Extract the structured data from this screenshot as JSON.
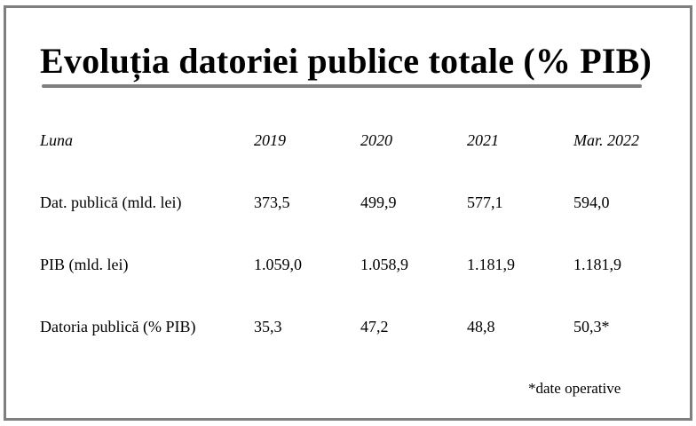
{
  "title": "Evoluția datoriei publice totale (% PIB)",
  "table": {
    "header": [
      "Luna",
      "2019",
      "2020",
      "2021",
      "Mar. 2022"
    ],
    "rows": [
      [
        "Dat. publică (mld. lei)",
        "373,5",
        "499,9",
        "577,1",
        "594,0"
      ],
      [
        "PIB (mld. lei)",
        "1.059,0",
        "1.058,9",
        "1.181,9",
        "1.181,9"
      ],
      [
        "Datoria publică (% PIB)",
        "35,3",
        "47,2",
        "48,8",
        "50,3*"
      ]
    ]
  },
  "footnote": "*date operative",
  "colors": {
    "frame": "#7f7f7f",
    "rule": "#7f7f7f",
    "text": "#000000"
  }
}
